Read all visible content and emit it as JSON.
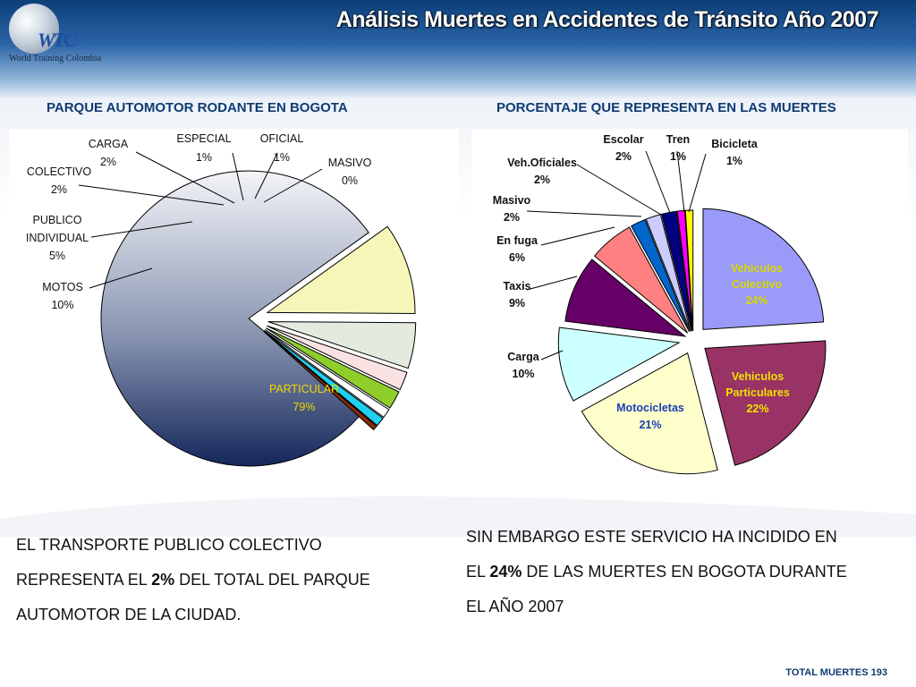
{
  "header": {
    "title": "Análisis Muertes en Accidentes de Tránsito Año 2007",
    "logo_text": "World Training Colombia",
    "logo_mark": "WTC"
  },
  "colors": {
    "header_dark": "#0c3f7a",
    "title_blue": "#0d3b73"
  },
  "chart_data": [
    {
      "type": "pie",
      "title": "PARQUE AUTOMOTOR RODANTE EN BOGOTA",
      "slices": [
        {
          "label": "PARTICULAR",
          "value": 79,
          "pct": "79%",
          "color": "#8c98b4"
        },
        {
          "label": "MOTOS",
          "value": 10,
          "pct": "10%",
          "color": "#f6f6b8"
        },
        {
          "label": "PUBLICO INDIVIDUAL",
          "value": 5,
          "pct": "5%",
          "color": "#e4eadd"
        },
        {
          "label": "COLECTIVO",
          "value": 2,
          "pct": "2%",
          "color": "#fbe2e2"
        },
        {
          "label": "CARGA",
          "value": 2,
          "pct": "2%",
          "color": "#8fce2a"
        },
        {
          "label": "ESPECIAL",
          "value": 1,
          "pct": "1%",
          "color": "#ffffff"
        },
        {
          "label": "OFICIAL",
          "value": 1,
          "pct": "1%",
          "color": "#20d0f0"
        },
        {
          "label": "MASIVO",
          "value": 0,
          "pct": "0%",
          "color": "#8a2a0a"
        }
      ]
    },
    {
      "type": "pie",
      "title": "PORCENTAJE QUE REPRESENTA EN LAS MUERTES",
      "slices": [
        {
          "label": "Vehiculos Colectivo",
          "value": 24,
          "pct": "24%",
          "color": "#9a9af8"
        },
        {
          "label": "Vehiculos Particulares",
          "value": 22,
          "pct": "22%",
          "color": "#993366"
        },
        {
          "label": "Motocicletas",
          "value": 21,
          "pct": "21%",
          "color": "#ffffcc"
        },
        {
          "label": "Carga",
          "value": 10,
          "pct": "10%",
          "color": "#ccffff"
        },
        {
          "label": "Taxis",
          "value": 9,
          "pct": "9%",
          "color": "#660066"
        },
        {
          "label": "En fuga",
          "value": 6,
          "pct": "6%",
          "color": "#ff8080"
        },
        {
          "label": "Masivo",
          "value": 2,
          "pct": "2%",
          "color": "#0066cc"
        },
        {
          "label": "Veh.Oficiales",
          "value": 2,
          "pct": "2%",
          "color": "#ccccff"
        },
        {
          "label": "Escolar",
          "value": 2,
          "pct": "2%",
          "color": "#000080"
        },
        {
          "label": "Tren",
          "value": 1,
          "pct": "1%",
          "color": "#ff00ff"
        },
        {
          "label": "Bicicleta",
          "value": 1,
          "pct": "1%",
          "color": "#ffff00"
        }
      ]
    }
  ],
  "left_chart_labels": {
    "particular": "PARTICULAR",
    "particular_pct": "79%",
    "motos": "MOTOS",
    "motos_pct": "10%",
    "publico_1": "PUBLICO",
    "publico_2": "INDIVIDUAL",
    "publico_pct": "5%",
    "colectivo": "COLECTIVO",
    "colectivo_pct": "2%",
    "carga": "CARGA",
    "carga_pct": "2%",
    "especial": "ESPECIAL",
    "especial_pct": "1%",
    "oficial": "OFICIAL",
    "oficial_pct": "1%",
    "masivo": "MASIVO",
    "masivo_pct": "0%"
  },
  "right_chart_labels": {
    "colectivo_1": "Vehiculos",
    "colectivo_2": "Colectivo",
    "colectivo_pct": "24%",
    "particulares_1": "Vehiculos",
    "particulares_2": "Particulares",
    "particulares_pct": "22%",
    "motocicletas": "Motocicletas",
    "motocicletas_pct": "21%",
    "carga": "Carga",
    "carga_pct": "10%",
    "taxis": "Taxis",
    "taxis_pct": "9%",
    "fuga": "En fuga",
    "fuga_pct": "6%",
    "masivo": "Masivo",
    "masivo_pct": "2%",
    "oficiales": "Veh.Oficiales",
    "oficiales_pct": "2%",
    "escolar": "Escolar",
    "escolar_pct": "2%",
    "tren": "Tren",
    "tren_pct": "1%",
    "bicicleta": "Bicicleta",
    "bicicleta_pct": "1%"
  },
  "bottom_left": {
    "line1": "EL TRANSPORTE PUBLICO COLECTIVO",
    "line2_pre": "REPRESENTA EL ",
    "line2_bold": "2%",
    "line2_post": " DEL TOTAL DEL PARQUE",
    "line3": "AUTOMOTOR DE LA CIUDAD."
  },
  "bottom_right": {
    "line1": "SIN EMBARGO ESTE SERVICIO  HA INCIDIDO EN",
    "line2_pre": "EL ",
    "line2_bold": "24%",
    "line2_post": " DE LAS MUERTES EN BOGOTA DURANTE",
    "line3": "EL AÑO 2007"
  },
  "footer": "TOTAL MUERTES 193"
}
